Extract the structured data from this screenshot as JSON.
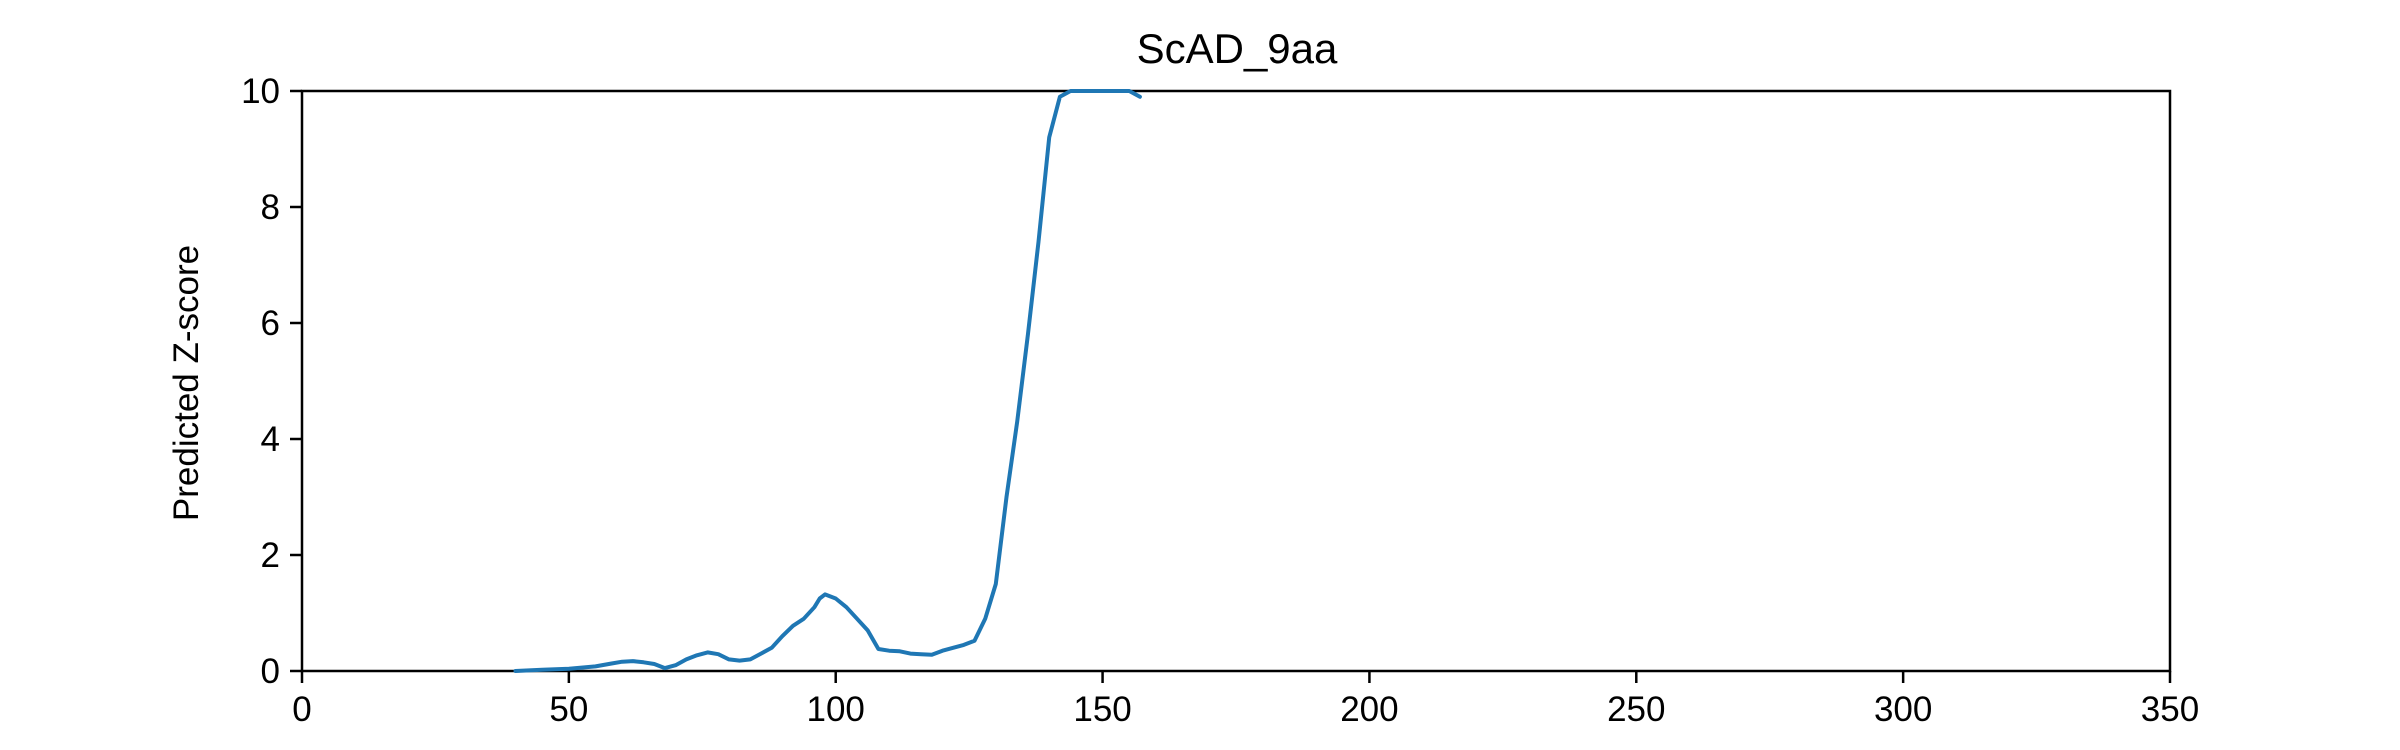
{
  "chart_data": {
    "type": "line",
    "title": "ScAD_9aa",
    "xlabel": "",
    "ylabel": "Predicted Z-score",
    "xlim": [
      0,
      350
    ],
    "ylim": [
      0,
      10
    ],
    "xticks": [
      0,
      50,
      100,
      150,
      200,
      250,
      300,
      350
    ],
    "yticks": [
      0,
      2,
      4,
      6,
      8,
      10
    ],
    "grid": false,
    "colors": {
      "line": "#1f77b4",
      "axes": "#000000"
    },
    "series": [
      {
        "x": [
          40,
          45,
          50,
          55,
          58,
          60,
          62,
          64,
          66,
          68,
          70,
          72,
          74,
          76,
          78,
          80,
          82,
          84,
          86,
          88,
          90,
          92,
          94,
          96,
          97,
          98,
          100,
          102,
          104,
          106,
          108,
          110,
          112,
          114,
          116,
          118,
          120,
          122,
          124,
          126,
          128,
          130,
          132,
          134,
          136,
          138,
          140,
          142,
          144,
          146,
          148,
          150,
          151,
          152,
          154,
          155,
          157
        ],
        "y": [
          0.0,
          0.02,
          0.04,
          0.08,
          0.13,
          0.16,
          0.17,
          0.15,
          0.12,
          0.05,
          0.1,
          0.2,
          0.27,
          0.32,
          0.29,
          0.2,
          0.18,
          0.2,
          0.3,
          0.4,
          0.6,
          0.78,
          0.9,
          1.1,
          1.25,
          1.32,
          1.25,
          1.1,
          0.9,
          0.7,
          0.38,
          0.35,
          0.34,
          0.3,
          0.29,
          0.28,
          0.35,
          0.4,
          0.45,
          0.52,
          0.9,
          1.5,
          3.0,
          4.3,
          5.8,
          7.4,
          9.2,
          9.9,
          10.0,
          10.0,
          10.0,
          10.0,
          10.0,
          10.0,
          10.0,
          10.0,
          9.9
        ]
      }
    ]
  }
}
